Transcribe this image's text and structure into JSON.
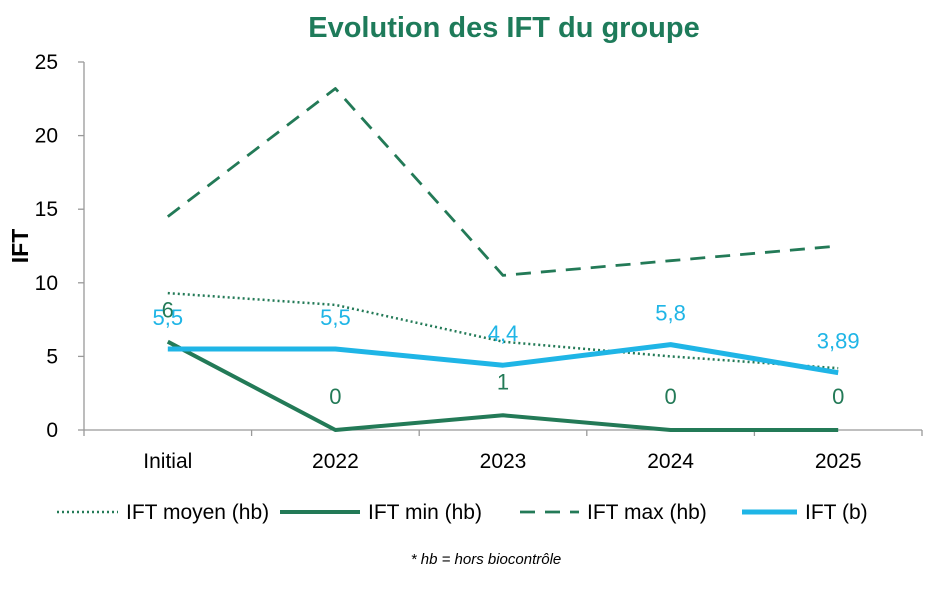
{
  "colors": {
    "title": "#1E7B5A",
    "dark_green": "#237A57",
    "cyan": "#1FB5E6",
    "axis": "#999999"
  },
  "chart_data": {
    "type": "line",
    "title": "Evolution des IFT du groupe",
    "xlabel": "",
    "ylabel": "IFT",
    "categories": [
      "Initial",
      "2022",
      "2023",
      "2024",
      "2025"
    ],
    "ylim": [
      0,
      25
    ],
    "yticks": [
      0,
      5,
      10,
      15,
      20,
      25
    ],
    "grid": false,
    "legend_position": "bottom",
    "series": [
      {
        "name": "IFT moyen (hb)",
        "style": "dotted",
        "color": "#237A57",
        "values": [
          9.3,
          8.5,
          6.0,
          5.0,
          4.2
        ],
        "labels": [
          null,
          null,
          null,
          null,
          null
        ]
      },
      {
        "name": "IFT min (hb)",
        "style": "solid",
        "color": "#237A57",
        "values": [
          6,
          0,
          1,
          0,
          0
        ],
        "labels": [
          "6",
          "0",
          "1",
          "0",
          "0"
        ]
      },
      {
        "name": "IFT max (hb)",
        "style": "dashed",
        "color": "#237A57",
        "values": [
          14.5,
          23.2,
          10.5,
          11.5,
          12.5
        ],
        "labels": [
          null,
          null,
          null,
          null,
          null
        ]
      },
      {
        "name": "IFT (b)",
        "style": "solid-thick",
        "color": "#1FB5E6",
        "values": [
          5.5,
          5.5,
          4.4,
          5.8,
          3.89
        ],
        "labels": [
          "5,5",
          "5,5",
          "4,4",
          "5,8",
          "3,89"
        ]
      }
    ],
    "note": "* hb = hors biocontrôle"
  }
}
